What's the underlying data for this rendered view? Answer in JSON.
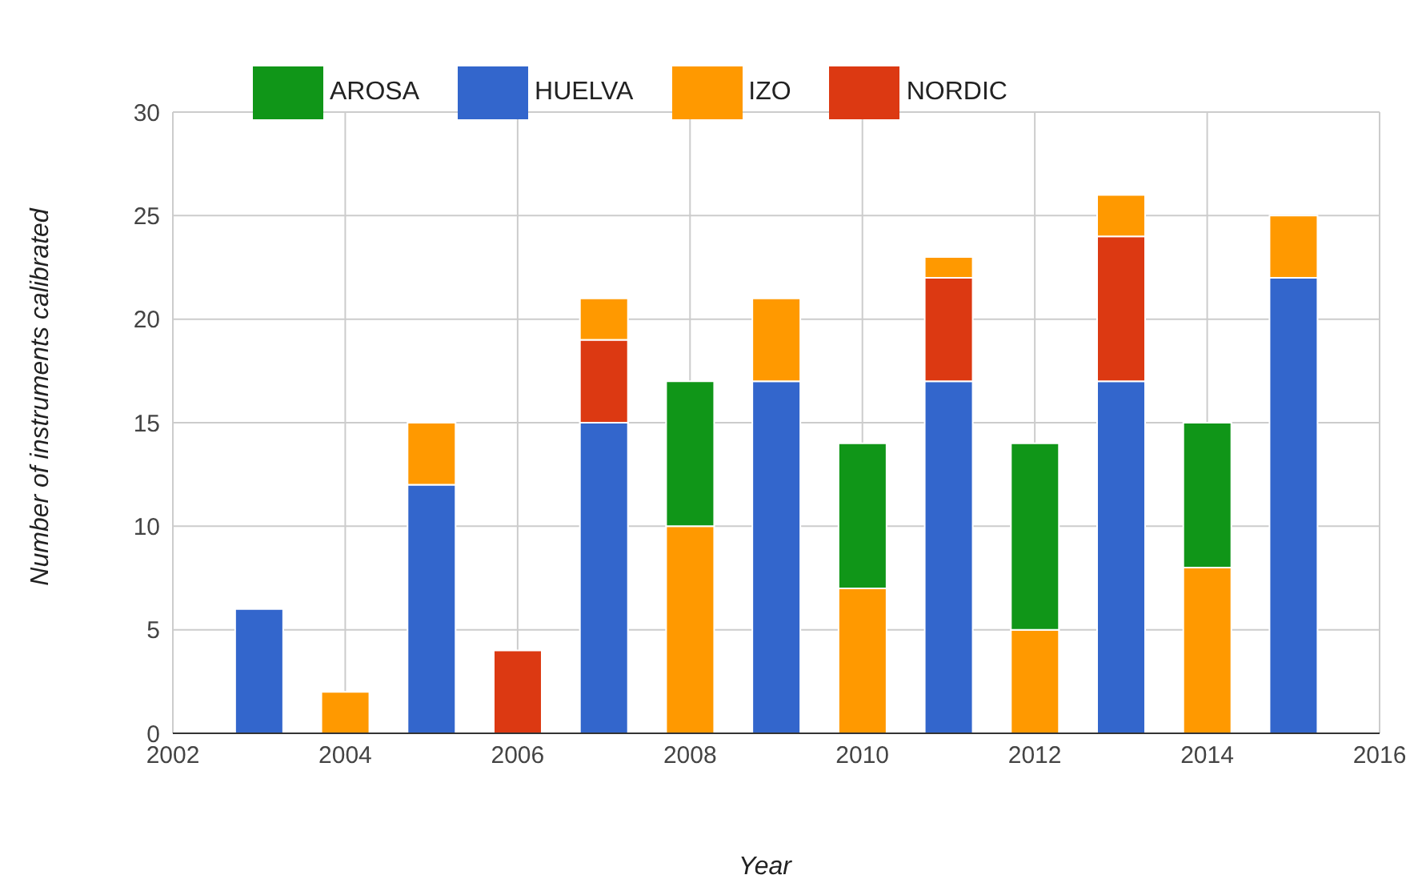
{
  "chart_data": {
    "type": "bar",
    "stacked": true,
    "xlabel": "Year",
    "ylabel": "Number of instruments calibrated",
    "x": [
      2003,
      2004,
      2005,
      2006,
      2007,
      2008,
      2009,
      2010,
      2011,
      2012,
      2013,
      2014,
      2015
    ],
    "series": [
      {
        "name": "HUELVA",
        "color": "#3366cc",
        "values": [
          6,
          null,
          12,
          null,
          15,
          null,
          17,
          null,
          17,
          null,
          17,
          null,
          22
        ]
      },
      {
        "name": "NORDIC",
        "color": "#dc3912",
        "values": [
          null,
          null,
          null,
          4,
          4,
          null,
          null,
          null,
          5,
          null,
          7,
          null,
          null
        ]
      },
      {
        "name": "IZO",
        "color": "#ff9900",
        "values": [
          null,
          2,
          3,
          null,
          2,
          10,
          4,
          7,
          1,
          5,
          2,
          8,
          3
        ]
      },
      {
        "name": "AROSA",
        "color": "#109618",
        "values": [
          null,
          null,
          null,
          null,
          null,
          7,
          null,
          7,
          null,
          9,
          null,
          7,
          null
        ]
      }
    ],
    "xlim": [
      2002,
      2016
    ],
    "xticks": [
      2002,
      2004,
      2006,
      2008,
      2010,
      2012,
      2014,
      2016
    ],
    "ylim": [
      0,
      30
    ],
    "yticks": [
      0,
      5,
      10,
      15,
      20,
      25,
      30
    ],
    "grid": true,
    "legend": "top left"
  }
}
